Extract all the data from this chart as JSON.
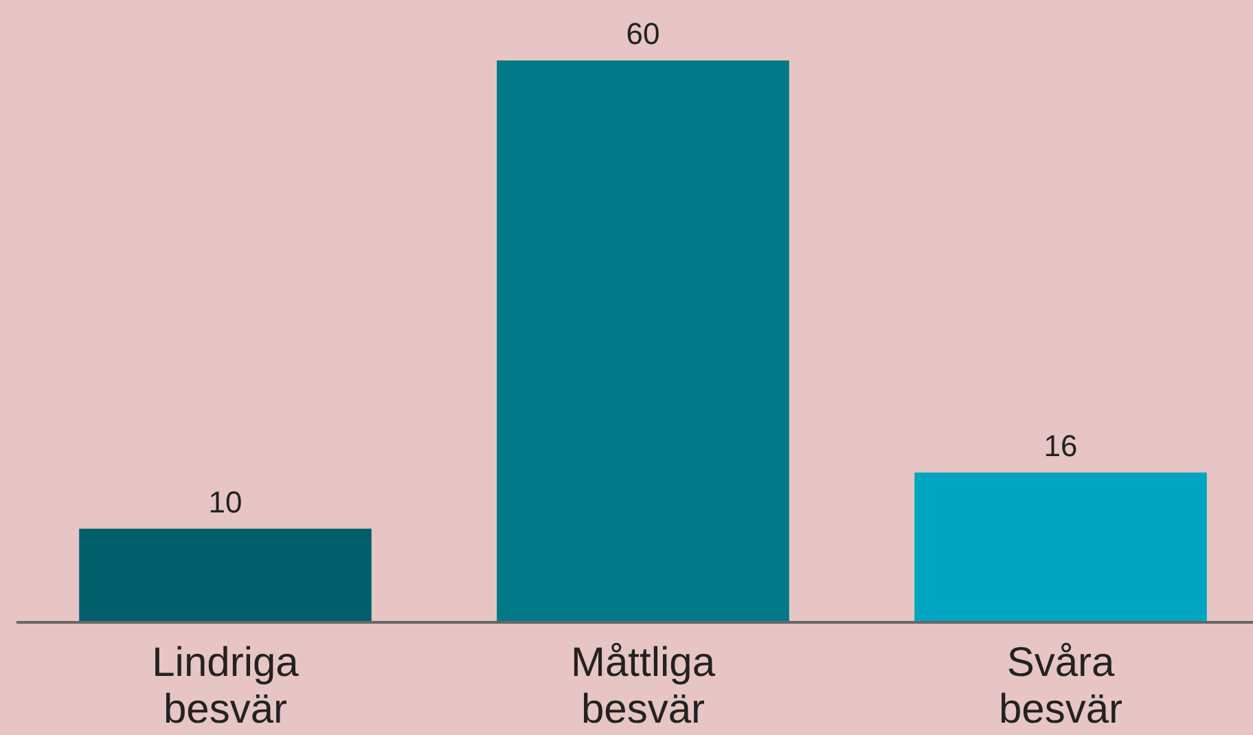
{
  "chart_data": {
    "type": "bar",
    "categories": [
      "Lindriga besvär",
      "Måttliga besvär",
      "Svåra besvär"
    ],
    "values": [
      10,
      60,
      16
    ],
    "colors": [
      "#005f6b",
      "#007a87",
      "#00a6bf"
    ],
    "data_labels": true
  }
}
